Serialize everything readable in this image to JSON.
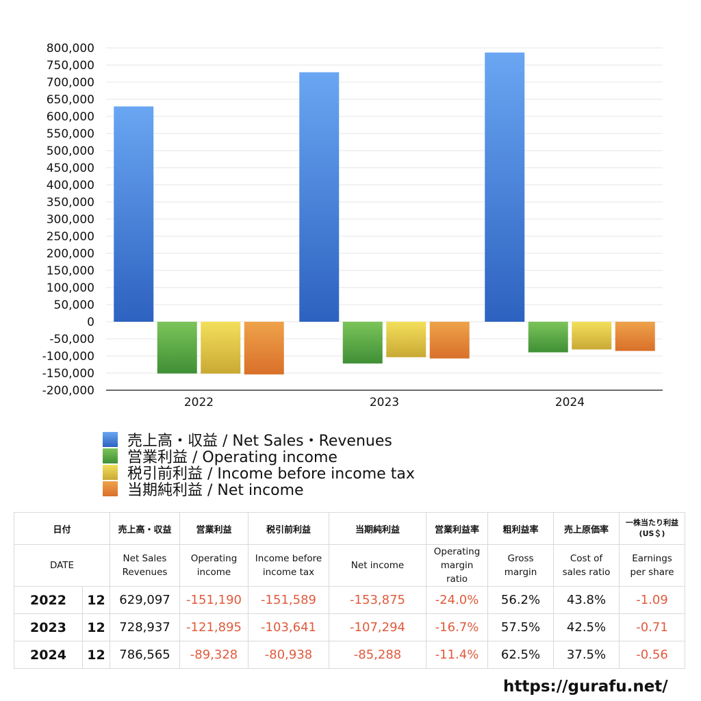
{
  "chart_data": {
    "type": "bar",
    "categories": [
      "2022",
      "2023",
      "2024"
    ],
    "series": [
      {
        "name": "売上高・収益 / Net Sales・Revenues",
        "values": [
          629097,
          728937,
          786565
        ],
        "color_top": "#6aa6f2",
        "color_bottom": "#2d62c0"
      },
      {
        "name": "営業利益 / Operating income",
        "values": [
          -151190,
          -121895,
          -89328
        ],
        "color_top": "#7cc45a",
        "color_bottom": "#3f8f35"
      },
      {
        "name": "税引前利益 / Income before income tax",
        "values": [
          -151589,
          -103641,
          -80938
        ],
        "color_top": "#f3df5a",
        "color_bottom": "#c9a935"
      },
      {
        "name": "当期純利益 / Net income",
        "values": [
          -153875,
          -107294,
          -85288
        ],
        "color_top": "#eea24a",
        "color_bottom": "#d9702a"
      }
    ],
    "ylim": [
      -200000,
      800000
    ],
    "ytick_step": 50000,
    "yticks": [
      "800,000",
      "750,000",
      "700,000",
      "650,000",
      "600,000",
      "550,000",
      "500,000",
      "450,000",
      "400,000",
      "350,000",
      "300,000",
      "250,000",
      "200,000",
      "150,000",
      "100,000",
      "50,000",
      "0",
      "-50,000",
      "-100,000",
      "-150,000",
      "-200,000"
    ],
    "title": "",
    "xlabel": "",
    "ylabel": "",
    "grid": true,
    "legend_position": "bottom-left"
  },
  "table": {
    "header_jp": [
      "日付",
      "売上高・収益",
      "営業利益",
      "税引前利益",
      "当期純利益",
      "営業利益率",
      "粗利益率",
      "売上原価率",
      "一株当たり利益\n(US＄)"
    ],
    "header_en": [
      "DATE",
      "Net Sales\nRevenues",
      "Operating\nincome",
      "Income before\nincome tax",
      "Net income",
      "Operating\nmargin\nratio",
      "Gross\nmargin",
      "Cost of\nsales ratio",
      "Earnings\nper share"
    ],
    "rows": [
      {
        "year": "2022",
        "month": "12",
        "sales": "629,097",
        "op": "-151,190",
        "pretax": "-151,589",
        "net": "-153,875",
        "op_margin": "-24.0%",
        "gross": "56.2%",
        "cost": "43.8%",
        "eps": "-1.09"
      },
      {
        "year": "2023",
        "month": "12",
        "sales": "728,937",
        "op": "-121,895",
        "pretax": "-103,641",
        "net": "-107,294",
        "op_margin": "-16.7%",
        "gross": "57.5%",
        "cost": "42.5%",
        "eps": "-0.71"
      },
      {
        "year": "2024",
        "month": "12",
        "sales": "786,565",
        "op": "-89,328",
        "pretax": "-80,938",
        "net": "-85,288",
        "op_margin": "-11.4%",
        "gross": "62.5%",
        "cost": "37.5%",
        "eps": "-0.56"
      }
    ]
  },
  "footer": {
    "site": "https://gurafu.net/"
  }
}
